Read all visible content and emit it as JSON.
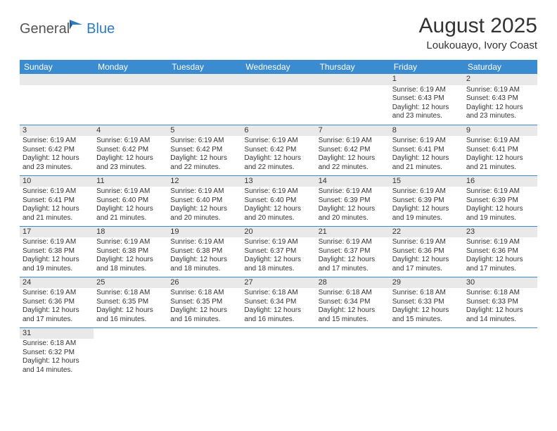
{
  "logo": {
    "text1": "General",
    "text2": "Blue"
  },
  "title": "August 2025",
  "location": "Loukouayo, Ivory Coast",
  "colors": {
    "header_bg": "#3b8bd0",
    "header_text": "#ffffff",
    "stripe_bg": "#e9e9e9",
    "divider": "#3b8bd0",
    "logo_blue": "#2b7cc4",
    "logo_gray": "#555555",
    "text": "#333333"
  },
  "day_names": [
    "Sunday",
    "Monday",
    "Tuesday",
    "Wednesday",
    "Thursday",
    "Friday",
    "Saturday"
  ],
  "weeks": [
    [
      {
        "blank": true
      },
      {
        "blank": true
      },
      {
        "blank": true
      },
      {
        "blank": true
      },
      {
        "blank": true
      },
      {
        "day": "1",
        "sunrise": "Sunrise: 6:19 AM",
        "sunset": "Sunset: 6:43 PM",
        "daylight": "Daylight: 12 hours and 23 minutes."
      },
      {
        "day": "2",
        "sunrise": "Sunrise: 6:19 AM",
        "sunset": "Sunset: 6:43 PM",
        "daylight": "Daylight: 12 hours and 23 minutes."
      }
    ],
    [
      {
        "day": "3",
        "sunrise": "Sunrise: 6:19 AM",
        "sunset": "Sunset: 6:42 PM",
        "daylight": "Daylight: 12 hours and 23 minutes."
      },
      {
        "day": "4",
        "sunrise": "Sunrise: 6:19 AM",
        "sunset": "Sunset: 6:42 PM",
        "daylight": "Daylight: 12 hours and 23 minutes."
      },
      {
        "day": "5",
        "sunrise": "Sunrise: 6:19 AM",
        "sunset": "Sunset: 6:42 PM",
        "daylight": "Daylight: 12 hours and 22 minutes."
      },
      {
        "day": "6",
        "sunrise": "Sunrise: 6:19 AM",
        "sunset": "Sunset: 6:42 PM",
        "daylight": "Daylight: 12 hours and 22 minutes."
      },
      {
        "day": "7",
        "sunrise": "Sunrise: 6:19 AM",
        "sunset": "Sunset: 6:42 PM",
        "daylight": "Daylight: 12 hours and 22 minutes."
      },
      {
        "day": "8",
        "sunrise": "Sunrise: 6:19 AM",
        "sunset": "Sunset: 6:41 PM",
        "daylight": "Daylight: 12 hours and 21 minutes."
      },
      {
        "day": "9",
        "sunrise": "Sunrise: 6:19 AM",
        "sunset": "Sunset: 6:41 PM",
        "daylight": "Daylight: 12 hours and 21 minutes."
      }
    ],
    [
      {
        "day": "10",
        "sunrise": "Sunrise: 6:19 AM",
        "sunset": "Sunset: 6:41 PM",
        "daylight": "Daylight: 12 hours and 21 minutes."
      },
      {
        "day": "11",
        "sunrise": "Sunrise: 6:19 AM",
        "sunset": "Sunset: 6:40 PM",
        "daylight": "Daylight: 12 hours and 21 minutes."
      },
      {
        "day": "12",
        "sunrise": "Sunrise: 6:19 AM",
        "sunset": "Sunset: 6:40 PM",
        "daylight": "Daylight: 12 hours and 20 minutes."
      },
      {
        "day": "13",
        "sunrise": "Sunrise: 6:19 AM",
        "sunset": "Sunset: 6:40 PM",
        "daylight": "Daylight: 12 hours and 20 minutes."
      },
      {
        "day": "14",
        "sunrise": "Sunrise: 6:19 AM",
        "sunset": "Sunset: 6:39 PM",
        "daylight": "Daylight: 12 hours and 20 minutes."
      },
      {
        "day": "15",
        "sunrise": "Sunrise: 6:19 AM",
        "sunset": "Sunset: 6:39 PM",
        "daylight": "Daylight: 12 hours and 19 minutes."
      },
      {
        "day": "16",
        "sunrise": "Sunrise: 6:19 AM",
        "sunset": "Sunset: 6:39 PM",
        "daylight": "Daylight: 12 hours and 19 minutes."
      }
    ],
    [
      {
        "day": "17",
        "sunrise": "Sunrise: 6:19 AM",
        "sunset": "Sunset: 6:38 PM",
        "daylight": "Daylight: 12 hours and 19 minutes."
      },
      {
        "day": "18",
        "sunrise": "Sunrise: 6:19 AM",
        "sunset": "Sunset: 6:38 PM",
        "daylight": "Daylight: 12 hours and 18 minutes."
      },
      {
        "day": "19",
        "sunrise": "Sunrise: 6:19 AM",
        "sunset": "Sunset: 6:38 PM",
        "daylight": "Daylight: 12 hours and 18 minutes."
      },
      {
        "day": "20",
        "sunrise": "Sunrise: 6:19 AM",
        "sunset": "Sunset: 6:37 PM",
        "daylight": "Daylight: 12 hours and 18 minutes."
      },
      {
        "day": "21",
        "sunrise": "Sunrise: 6:19 AM",
        "sunset": "Sunset: 6:37 PM",
        "daylight": "Daylight: 12 hours and 17 minutes."
      },
      {
        "day": "22",
        "sunrise": "Sunrise: 6:19 AM",
        "sunset": "Sunset: 6:36 PM",
        "daylight": "Daylight: 12 hours and 17 minutes."
      },
      {
        "day": "23",
        "sunrise": "Sunrise: 6:19 AM",
        "sunset": "Sunset: 6:36 PM",
        "daylight": "Daylight: 12 hours and 17 minutes."
      }
    ],
    [
      {
        "day": "24",
        "sunrise": "Sunrise: 6:19 AM",
        "sunset": "Sunset: 6:36 PM",
        "daylight": "Daylight: 12 hours and 17 minutes."
      },
      {
        "day": "25",
        "sunrise": "Sunrise: 6:18 AM",
        "sunset": "Sunset: 6:35 PM",
        "daylight": "Daylight: 12 hours and 16 minutes."
      },
      {
        "day": "26",
        "sunrise": "Sunrise: 6:18 AM",
        "sunset": "Sunset: 6:35 PM",
        "daylight": "Daylight: 12 hours and 16 minutes."
      },
      {
        "day": "27",
        "sunrise": "Sunrise: 6:18 AM",
        "sunset": "Sunset: 6:34 PM",
        "daylight": "Daylight: 12 hours and 16 minutes."
      },
      {
        "day": "28",
        "sunrise": "Sunrise: 6:18 AM",
        "sunset": "Sunset: 6:34 PM",
        "daylight": "Daylight: 12 hours and 15 minutes."
      },
      {
        "day": "29",
        "sunrise": "Sunrise: 6:18 AM",
        "sunset": "Sunset: 6:33 PM",
        "daylight": "Daylight: 12 hours and 15 minutes."
      },
      {
        "day": "30",
        "sunrise": "Sunrise: 6:18 AM",
        "sunset": "Sunset: 6:33 PM",
        "daylight": "Daylight: 12 hours and 14 minutes."
      }
    ],
    [
      {
        "day": "31",
        "sunrise": "Sunrise: 6:18 AM",
        "sunset": "Sunset: 6:32 PM",
        "daylight": "Daylight: 12 hours and 14 minutes."
      },
      {
        "blank": true
      },
      {
        "blank": true
      },
      {
        "blank": true
      },
      {
        "blank": true
      },
      {
        "blank": true
      },
      {
        "blank": true
      }
    ]
  ]
}
